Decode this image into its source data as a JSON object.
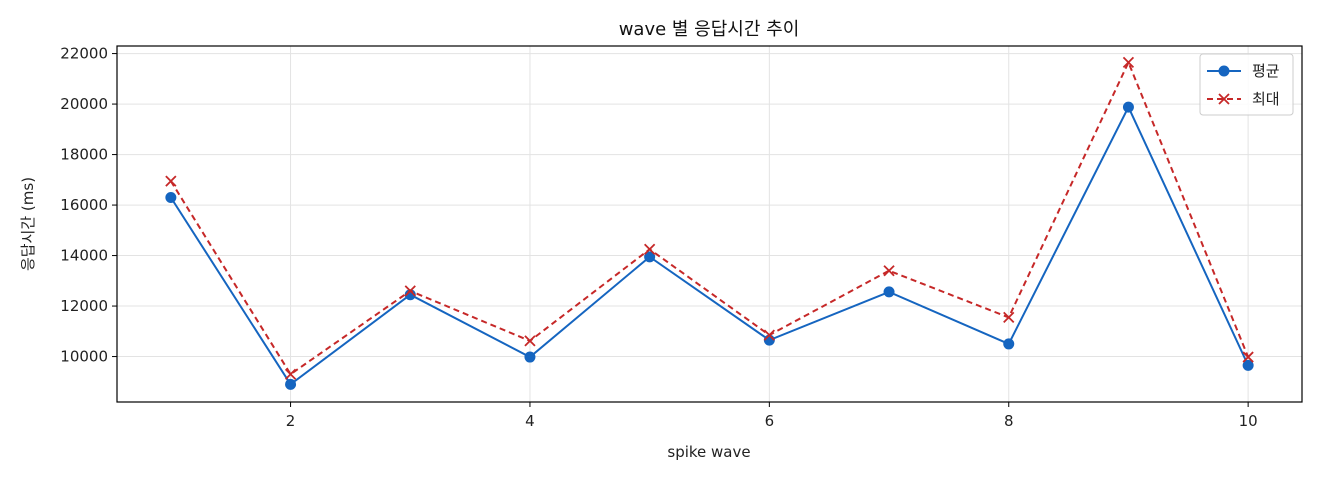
{
  "chart_data": {
    "type": "line",
    "title": "wave 별 응답시간 추이",
    "xlabel": "spike wave",
    "ylabel": "응답시간 (ms)",
    "x": [
      1,
      2,
      3,
      4,
      5,
      6,
      7,
      8,
      9,
      10
    ],
    "xlim": [
      0.55,
      10.45
    ],
    "ylim": [
      8200,
      22300
    ],
    "xticks": [
      2,
      4,
      6,
      8,
      10
    ],
    "yticks": [
      10000,
      12000,
      14000,
      16000,
      18000,
      20000,
      22000
    ],
    "grid": true,
    "legend_position": "top-right",
    "series": [
      {
        "name": "평균",
        "color": "#1565c0",
        "marker": "circle",
        "linestyle": "solid",
        "values": [
          16300,
          8900,
          12450,
          9980,
          13950,
          10650,
          12560,
          10500,
          19880,
          9650
        ]
      },
      {
        "name": "최대",
        "color": "#c62828",
        "marker": "x",
        "linestyle": "dashed",
        "values": [
          16950,
          9300,
          12600,
          10620,
          14250,
          10850,
          13400,
          11550,
          21650,
          9980
        ]
      }
    ]
  }
}
